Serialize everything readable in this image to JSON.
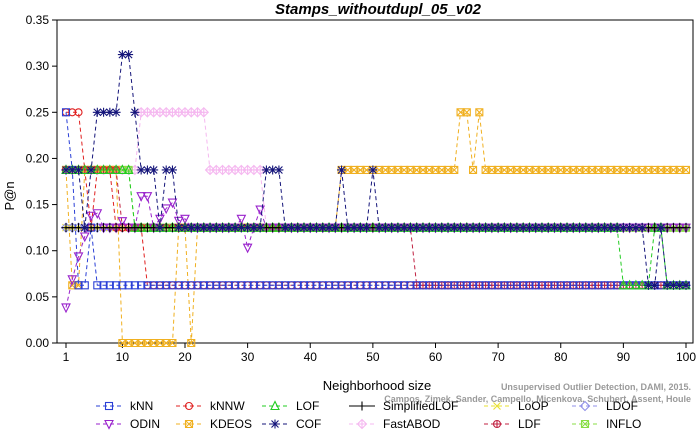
{
  "chart_data": {
    "type": "line",
    "title": "Stamps_withoutdupl_05_v02",
    "xlabel": "Neighborhood size",
    "ylabel": "P@n",
    "xlim": [
      1,
      100
    ],
    "ylim": [
      0,
      0.35
    ],
    "xticks": [
      "1",
      "10",
      "20",
      "30",
      "40",
      "50",
      "60",
      "70",
      "80",
      "90",
      "100"
    ],
    "yticks": [
      "0.00",
      "0.05",
      "0.10",
      "0.15",
      "0.20",
      "0.25",
      "0.30",
      "0.35"
    ],
    "legend_position": "bottom",
    "watermark": [
      "Campos, Zimek, Sander, Campello, Micenkova, Schubert, Assent, Houle",
      "Unsupervised Outlier Detection, DAMI, 2015."
    ],
    "series": [
      {
        "name": "kNN",
        "color": "#2a3fd6",
        "marker": "square",
        "dash": "4,3",
        "points": [
          [
            1,
            0.25
          ],
          [
            2,
            0.1875
          ],
          [
            3,
            0.0625
          ],
          [
            4,
            0.0625
          ],
          [
            5,
            0.125
          ],
          [
            6,
            0.0625
          ],
          [
            7,
            0.0625
          ],
          [
            8,
            0.0625
          ],
          [
            10,
            0.0625
          ],
          [
            20,
            0.0625
          ],
          [
            40,
            0.0625
          ],
          [
            60,
            0.0625
          ],
          [
            80,
            0.0625
          ],
          [
            92,
            0.0625
          ],
          [
            100,
            0.0625
          ]
        ]
      },
      {
        "name": "kNNW",
        "color": "#e02020",
        "marker": "circle",
        "dash": "4,3",
        "points": [
          [
            1,
            0.25
          ],
          [
            2,
            0.25
          ],
          [
            3,
            0.25
          ],
          [
            4,
            0.1875
          ],
          [
            5,
            0.125
          ],
          [
            6,
            0.1875
          ],
          [
            7,
            0.1875
          ],
          [
            8,
            0.1875
          ],
          [
            9,
            0.125
          ],
          [
            10,
            0.125
          ],
          [
            11,
            0.125
          ],
          [
            12,
            0.125
          ],
          [
            13,
            0.125
          ],
          [
            14,
            0.0625
          ],
          [
            20,
            0.0625
          ],
          [
            40,
            0.0625
          ],
          [
            60,
            0.0625
          ],
          [
            80,
            0.0625
          ],
          [
            100,
            0.0625
          ]
        ]
      },
      {
        "name": "LOF",
        "color": "#22cc22",
        "marker": "triangle",
        "dash": "4,3",
        "points": [
          [
            1,
            0.1875
          ],
          [
            2,
            0.1875
          ],
          [
            5,
            0.1875
          ],
          [
            8,
            0.1875
          ],
          [
            10,
            0.1875
          ],
          [
            11,
            0.1875
          ],
          [
            12,
            0.125
          ],
          [
            20,
            0.125
          ],
          [
            40,
            0.125
          ],
          [
            60,
            0.125
          ],
          [
            80,
            0.125
          ],
          [
            89,
            0.125
          ],
          [
            90,
            0.0625
          ],
          [
            94,
            0.0625
          ],
          [
            95,
            0.125
          ],
          [
            96,
            0.125
          ],
          [
            97,
            0.0625
          ],
          [
            100,
            0.0625
          ]
        ]
      },
      {
        "name": "SimplifiedLOF",
        "color": "#000000",
        "marker": "plus",
        "dash": "",
        "points": [
          [
            1,
            0.125
          ],
          [
            20,
            0.125
          ],
          [
            40,
            0.125
          ],
          [
            60,
            0.125
          ],
          [
            80,
            0.125
          ],
          [
            100,
            0.125
          ]
        ]
      },
      {
        "name": "LoOP",
        "color": "#e8e030",
        "marker": "x",
        "dash": "4,3",
        "points": [
          [
            1,
            0.125
          ],
          [
            20,
            0.125
          ],
          [
            40,
            0.125
          ],
          [
            60,
            0.125
          ],
          [
            80,
            0.125
          ],
          [
            100,
            0.125
          ]
        ]
      },
      {
        "name": "LDOF",
        "color": "#9090e8",
        "marker": "diamond",
        "dash": "4,3",
        "points": [
          [
            1,
            0.125
          ],
          [
            20,
            0.125
          ],
          [
            40,
            0.125
          ],
          [
            60,
            0.125
          ],
          [
            80,
            0.125
          ],
          [
            100,
            0.125
          ]
        ]
      },
      {
        "name": "ODIN",
        "color": "#9922cc",
        "marker": "tri-down",
        "dash": "4,3",
        "points": [
          [
            1,
            0.0385
          ],
          [
            2,
            0.069
          ],
          [
            3,
            0.0938
          ],
          [
            4,
            0.1154
          ],
          [
            5,
            0.1379
          ],
          [
            6,
            0.1406
          ],
          [
            7,
            0.125
          ],
          [
            8,
            0.125
          ],
          [
            9,
            0.125
          ],
          [
            10,
            0.132
          ],
          [
            11,
            0.125
          ],
          [
            12,
            0.125
          ],
          [
            13,
            0.1591
          ],
          [
            14,
            0.1591
          ],
          [
            15,
            0.125
          ],
          [
            16,
            0.1346
          ],
          [
            17,
            0.1458
          ],
          [
            18,
            0.1522
          ],
          [
            19,
            0.1324
          ],
          [
            20,
            0.1346
          ],
          [
            21,
            0.125
          ],
          [
            28,
            0.125
          ],
          [
            29,
            0.1346
          ],
          [
            30,
            0.1033
          ],
          [
            31,
            0.125
          ],
          [
            32,
            0.1446
          ],
          [
            33,
            0.125
          ],
          [
            40,
            0.125
          ],
          [
            60,
            0.125
          ],
          [
            80,
            0.125
          ],
          [
            100,
            0.125
          ]
        ]
      },
      {
        "name": "KDEOS",
        "color": "#f0b020",
        "marker": "sq-x",
        "dash": "4,3",
        "points": [
          [
            1,
            0.1875
          ],
          [
            2,
            0.0625
          ],
          [
            3,
            0.0625
          ],
          [
            4,
            0.1875
          ],
          [
            9,
            0.1875
          ],
          [
            10,
            0
          ],
          [
            15,
            0
          ],
          [
            18,
            0
          ],
          [
            19,
            0.125
          ],
          [
            20,
            0.125
          ],
          [
            21,
            0
          ],
          [
            22,
            0.125
          ],
          [
            44,
            0.125
          ],
          [
            45,
            0.1875
          ],
          [
            50,
            0.1875
          ],
          [
            60,
            0.1875
          ],
          [
            63,
            0.1875
          ],
          [
            64,
            0.25
          ],
          [
            65,
            0.25
          ],
          [
            66,
            0.1875
          ],
          [
            67,
            0.25
          ],
          [
            68,
            0.1875
          ],
          [
            80,
            0.1875
          ],
          [
            100,
            0.1875
          ]
        ]
      },
      {
        "name": "COF",
        "color": "#15157a",
        "marker": "star",
        "dash": "4,3",
        "points": [
          [
            1,
            0.1875
          ],
          [
            3,
            0.1875
          ],
          [
            4,
            0.125
          ],
          [
            5,
            0.1875
          ],
          [
            6,
            0.25
          ],
          [
            7,
            0.25
          ],
          [
            8,
            0.25
          ],
          [
            9,
            0.25
          ],
          [
            10,
            0.3125
          ],
          [
            11,
            0.3125
          ],
          [
            12,
            0.25
          ],
          [
            13,
            0.1875
          ],
          [
            14,
            0.1875
          ],
          [
            15,
            0.1875
          ],
          [
            16,
            0.125
          ],
          [
            17,
            0.1875
          ],
          [
            18,
            0.1875
          ],
          [
            19,
            0.125
          ],
          [
            20,
            0.125
          ],
          [
            32,
            0.125
          ],
          [
            33,
            0.1875
          ],
          [
            34,
            0.1875
          ],
          [
            35,
            0.1875
          ],
          [
            36,
            0.125
          ],
          [
            44,
            0.125
          ],
          [
            45,
            0.1875
          ],
          [
            46,
            0.125
          ],
          [
            49,
            0.125
          ],
          [
            50,
            0.1875
          ],
          [
            51,
            0.125
          ],
          [
            80,
            0.125
          ],
          [
            89,
            0.125
          ],
          [
            90,
            0.125
          ],
          [
            93,
            0.125
          ],
          [
            94,
            0.0625
          ],
          [
            95,
            0.0625
          ],
          [
            96,
            0.125
          ],
          [
            97,
            0.0625
          ],
          [
            100,
            0.0625
          ]
        ]
      },
      {
        "name": "FastABOD",
        "color": "#f5b8f0",
        "marker": "diamond-x",
        "dash": "4,3",
        "points": [
          [
            1,
            0.1875
          ],
          [
            12,
            0.1875
          ],
          [
            13,
            0.25
          ],
          [
            14,
            0.25
          ],
          [
            15,
            0.25
          ],
          [
            16,
            0.25
          ],
          [
            17,
            0.25
          ],
          [
            18,
            0.25
          ],
          [
            19,
            0.25
          ],
          [
            20,
            0.25
          ],
          [
            21,
            0.25
          ],
          [
            22,
            0.25
          ],
          [
            23,
            0.25
          ],
          [
            24,
            0.1875
          ],
          [
            32,
            0.1875
          ],
          [
            33,
            0.125
          ],
          [
            40,
            0.125
          ],
          [
            60,
            0.125
          ],
          [
            80,
            0.125
          ],
          [
            100,
            0.125
          ]
        ]
      },
      {
        "name": "LDF",
        "color": "#c02040",
        "marker": "circle-plus",
        "dash": "4,3",
        "points": [
          [
            1,
            0.1875
          ],
          [
            2,
            0.1875
          ],
          [
            3,
            0.1875
          ],
          [
            4,
            0.1875
          ],
          [
            5,
            0.1875
          ],
          [
            6,
            0.1875
          ],
          [
            7,
            0.1875
          ],
          [
            8,
            0.1875
          ],
          [
            9,
            0.1875
          ],
          [
            10,
            0.125
          ],
          [
            20,
            0.125
          ],
          [
            40,
            0.125
          ],
          [
            55,
            0.125
          ],
          [
            56,
            0.125
          ],
          [
            57,
            0.0625
          ],
          [
            60,
            0.0625
          ],
          [
            80,
            0.0625
          ],
          [
            100,
            0.0625
          ]
        ]
      },
      {
        "name": "INFLO",
        "color": "#88dd44",
        "marker": "sq-x",
        "dash": "4,3",
        "points": [
          [
            1,
            0.1875
          ],
          [
            11,
            0.1875
          ],
          [
            12,
            0.125
          ],
          [
            20,
            0.125
          ],
          [
            40,
            0.125
          ],
          [
            60,
            0.125
          ],
          [
            80,
            0.125
          ],
          [
            100,
            0.125
          ]
        ]
      }
    ],
    "legend_order": [
      [
        "kNN",
        "ODIN"
      ],
      [
        "kNNW",
        "KDEOS"
      ],
      [
        "LOF",
        "COF"
      ],
      [
        "SimplifiedLOF",
        "FastABOD"
      ],
      [
        "LoOP",
        "LDF"
      ],
      [
        "LDOF",
        "INFLO"
      ]
    ]
  }
}
